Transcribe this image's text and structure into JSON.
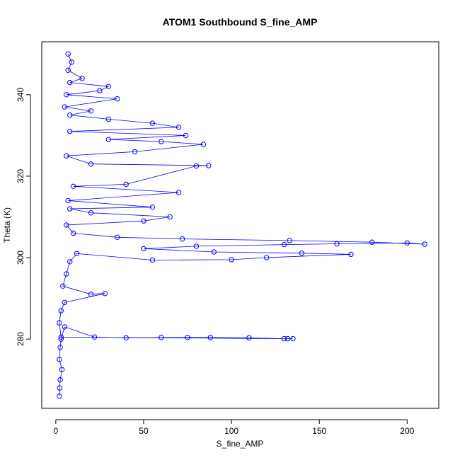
{
  "chart_data": {
    "type": "scatter",
    "title": "ATOM1 Southbound S_fine_AMP",
    "xlabel": "S_fine_AMP",
    "ylabel": "Theta (K)",
    "xlim": [
      -8,
      218
    ],
    "ylim": [
      263,
      353
    ],
    "xticks": [
      0,
      50,
      100,
      150,
      200
    ],
    "yticks": [
      280,
      300,
      320,
      340
    ],
    "grid": false,
    "legend": "none",
    "marker": "open-circle",
    "connected": true,
    "colors": {
      "series": "#0000ff",
      "axis": "#000000",
      "background": "#ffffff"
    },
    "series": [
      {
        "points": [
          [
            2,
            266
          ],
          [
            2.2,
            268
          ],
          [
            2.5,
            270
          ],
          [
            3.5,
            272.5
          ],
          [
            2,
            275
          ],
          [
            2.5,
            278
          ],
          [
            3,
            280
          ],
          [
            5,
            283
          ],
          [
            22,
            280.5
          ],
          [
            40,
            280.3
          ],
          [
            60,
            280.4
          ],
          [
            75,
            280.4
          ],
          [
            88,
            280.4
          ],
          [
            110,
            280.3
          ],
          [
            130,
            280.1
          ],
          [
            135,
            280.1
          ],
          [
            132,
            280.1
          ],
          [
            3,
            280.5
          ],
          [
            2,
            284
          ],
          [
            3,
            287
          ],
          [
            5,
            289
          ],
          [
            28,
            291.2
          ],
          [
            20,
            291
          ],
          [
            4,
            293
          ],
          [
            6,
            296
          ],
          [
            8,
            299
          ],
          [
            12,
            301
          ],
          [
            55,
            299.4
          ],
          [
            100,
            299.5
          ],
          [
            120,
            300
          ],
          [
            168,
            300.8
          ],
          [
            140,
            301.1
          ],
          [
            90,
            301.4
          ],
          [
            50,
            302.2
          ],
          [
            80,
            302.8
          ],
          [
            130,
            303.2
          ],
          [
            160,
            303.4
          ],
          [
            200,
            303.6
          ],
          [
            210,
            303.3
          ],
          [
            180,
            303.8
          ],
          [
            133,
            304.2
          ],
          [
            72,
            304.6
          ],
          [
            35,
            305
          ],
          [
            10,
            306
          ],
          [
            6,
            308
          ],
          [
            50,
            309
          ],
          [
            65,
            310
          ],
          [
            20,
            311
          ],
          [
            8,
            312
          ],
          [
            55,
            312.4
          ],
          [
            7,
            314
          ],
          [
            70,
            316
          ],
          [
            10,
            317.5
          ],
          [
            40,
            318
          ],
          [
            80,
            322.5
          ],
          [
            87,
            322.6
          ],
          [
            20,
            323
          ],
          [
            6,
            325
          ],
          [
            45,
            326
          ],
          [
            84,
            327.8
          ],
          [
            60,
            328.5
          ],
          [
            30,
            329
          ],
          [
            74,
            330
          ],
          [
            8,
            331
          ],
          [
            70,
            332
          ],
          [
            55,
            333
          ],
          [
            30,
            334
          ],
          [
            8,
            335
          ],
          [
            20,
            336
          ],
          [
            5,
            337
          ],
          [
            35,
            339
          ],
          [
            6,
            340
          ],
          [
            25,
            341
          ],
          [
            30,
            342
          ],
          [
            8,
            343
          ],
          [
            15,
            344
          ],
          [
            7,
            346
          ],
          [
            9,
            348
          ],
          [
            7,
            350
          ]
        ]
      }
    ]
  }
}
